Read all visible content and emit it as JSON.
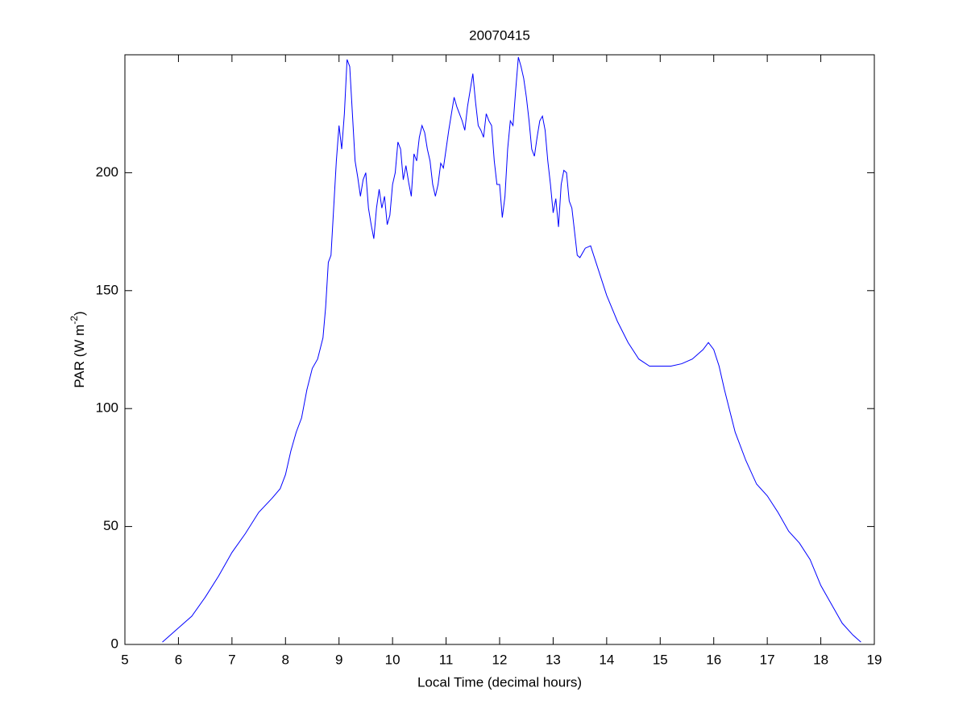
{
  "chart_data": {
    "type": "line",
    "title": "20070415",
    "xlabel": "Local Time (decimal hours)",
    "ylabel": [
      "PAR (W m",
      "-2",
      ")"
    ],
    "xlim": [
      5,
      19
    ],
    "xticks": [
      5,
      6,
      7,
      8,
      9,
      10,
      11,
      12,
      13,
      14,
      15,
      16,
      17,
      18,
      19
    ],
    "ylim": [
      0,
      250
    ],
    "yticks": [
      0,
      50,
      100,
      150,
      200
    ],
    "grid": false,
    "x": [
      5.7,
      6.0,
      6.25,
      6.5,
      6.75,
      7.0,
      7.25,
      7.5,
      7.75,
      7.9,
      8.0,
      8.1,
      8.2,
      8.3,
      8.4,
      8.5,
      8.6,
      8.7,
      8.75,
      8.8,
      8.85,
      8.9,
      8.95,
      9.0,
      9.05,
      9.1,
      9.15,
      9.2,
      9.25,
      9.3,
      9.35,
      9.4,
      9.45,
      9.5,
      9.55,
      9.6,
      9.65,
      9.7,
      9.75,
      9.8,
      9.85,
      9.9,
      9.95,
      10.0,
      10.05,
      10.1,
      10.15,
      10.2,
      10.25,
      10.3,
      10.35,
      10.4,
      10.45,
      10.5,
      10.55,
      10.6,
      10.65,
      10.7,
      10.75,
      10.8,
      10.85,
      10.9,
      10.95,
      11.0,
      11.05,
      11.1,
      11.15,
      11.2,
      11.25,
      11.3,
      11.35,
      11.4,
      11.45,
      11.5,
      11.55,
      11.6,
      11.65,
      11.7,
      11.75,
      11.8,
      11.85,
      11.9,
      11.95,
      12.0,
      12.05,
      12.1,
      12.15,
      12.2,
      12.25,
      12.3,
      12.35,
      12.4,
      12.45,
      12.5,
      12.55,
      12.6,
      12.65,
      12.7,
      12.75,
      12.8,
      12.85,
      12.9,
      12.95,
      13.0,
      13.05,
      13.1,
      13.15,
      13.2,
      13.25,
      13.3,
      13.35,
      13.4,
      13.45,
      13.5,
      13.6,
      13.7,
      13.8,
      13.9,
      14.0,
      14.2,
      14.4,
      14.6,
      14.8,
      15.0,
      15.2,
      15.4,
      15.6,
      15.8,
      15.9,
      16.0,
      16.1,
      16.2,
      16.4,
      16.6,
      16.8,
      17.0,
      17.2,
      17.4,
      17.6,
      17.8,
      18.0,
      18.2,
      18.4,
      18.6,
      18.75
    ],
    "series": [
      {
        "color": "#0000ff",
        "values": [
          1,
          7,
          12,
          20,
          29,
          39,
          47,
          56,
          62,
          66,
          72,
          82,
          90,
          96,
          108,
          117,
          121,
          130,
          143,
          162,
          165,
          185,
          205,
          220,
          210,
          225,
          248,
          245,
          225,
          205,
          198,
          190,
          197,
          200,
          185,
          178,
          172,
          185,
          193,
          185,
          190,
          178,
          182,
          195,
          200,
          213,
          210,
          197,
          203,
          196,
          190,
          208,
          205,
          215,
          220,
          217,
          210,
          205,
          195,
          190,
          195,
          204,
          202,
          210,
          218,
          225,
          232,
          228,
          225,
          222,
          218,
          228,
          235,
          242,
          230,
          220,
          218,
          215,
          225,
          222,
          220,
          205,
          195,
          195,
          181,
          190,
          210,
          222,
          220,
          235,
          249,
          245,
          240,
          232,
          222,
          210,
          207,
          215,
          222,
          224,
          218,
          205,
          195,
          183,
          189,
          177,
          195,
          201,
          200,
          188,
          185,
          175,
          165,
          164,
          168,
          169,
          162,
          155,
          148,
          137,
          128,
          121,
          118,
          118,
          118,
          119,
          121,
          125,
          128,
          125,
          118,
          108,
          90,
          78,
          68,
          63,
          56,
          48,
          43,
          36,
          25,
          17,
          9,
          4,
          1
        ]
      }
    ]
  }
}
